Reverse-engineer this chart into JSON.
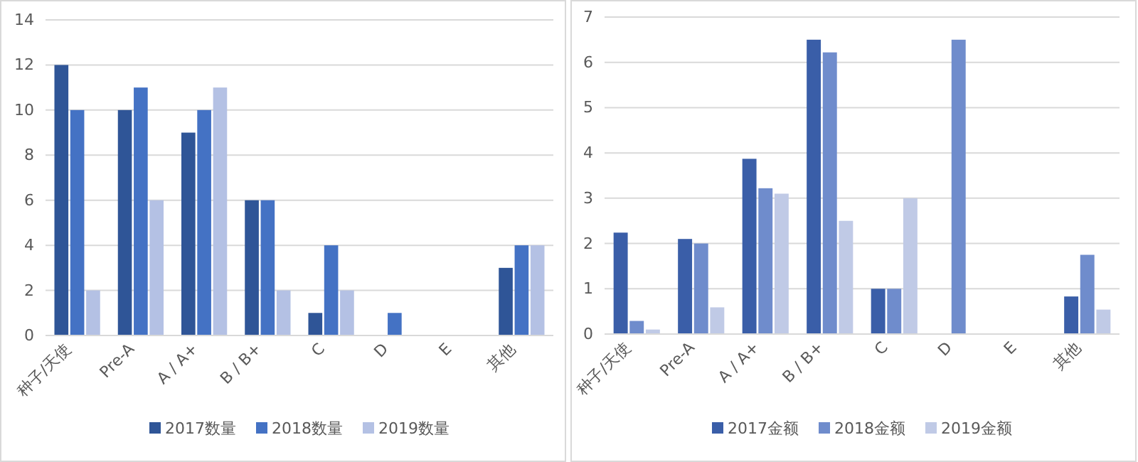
{
  "chart_data": [
    {
      "type": "bar",
      "categories": [
        "种子/天使",
        "Pre-A",
        "A / A+",
        "B / B+",
        "C",
        "D",
        "E",
        "其他"
      ],
      "series": [
        {
          "name": "2017数量",
          "color": "#2f5597",
          "values": [
            12,
            10,
            9,
            6,
            1,
            null,
            null,
            3
          ]
        },
        {
          "name": "2018数量",
          "color": "#4472c4",
          "values": [
            10,
            11,
            10,
            6,
            4,
            1,
            null,
            4
          ]
        },
        {
          "name": "2019数量",
          "color": "#b4c1e4",
          "values": [
            2,
            6,
            11,
            2,
            2,
            null,
            null,
            4
          ]
        }
      ],
      "ylim": [
        0,
        14
      ],
      "yticks": [
        0,
        2,
        4,
        6,
        8,
        10,
        12,
        14
      ],
      "grid": "y",
      "legend": "bottom"
    },
    {
      "type": "bar",
      "categories": [
        "种子/天使",
        "Pre-A",
        "A / A+",
        "B / B+",
        "C",
        "D",
        "E",
        "其他"
      ],
      "series": [
        {
          "name": "2017金额",
          "color": "#3a5ea8",
          "values": [
            2.24,
            2.1,
            3.87,
            6.5,
            1,
            null,
            null,
            0.83
          ]
        },
        {
          "name": "2018金额",
          "color": "#6f8ccc",
          "values": [
            0.29,
            2,
            3.22,
            6.22,
            1,
            6.5,
            null,
            1.75
          ]
        },
        {
          "name": "2019金额",
          "color": "#c0cae6",
          "values": [
            0.1,
            0.59,
            3.1,
            2.5,
            3,
            null,
            null,
            0.54
          ]
        }
      ],
      "ylim": [
        0,
        7
      ],
      "yticks": [
        0,
        1,
        2,
        3,
        4,
        5,
        6,
        7
      ],
      "grid": "y",
      "legend": "bottom"
    }
  ]
}
